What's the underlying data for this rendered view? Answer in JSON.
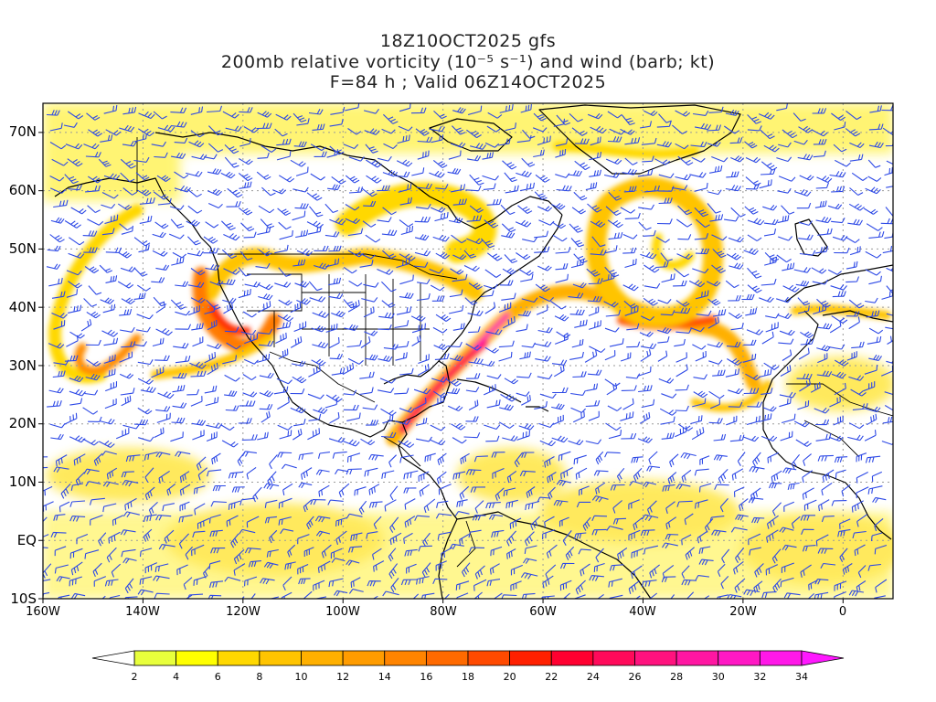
{
  "title": {
    "line1": "18Z10OCT2025 gfs",
    "line2": "200mb relative vorticity (10⁻⁵ s⁻¹) and wind (barb; kt)",
    "line3": "F=84 h ; Valid 06Z14OCT2025"
  },
  "map": {
    "projection": "latlon",
    "lon_range": [
      -160,
      10
    ],
    "lat_range": [
      -10,
      75
    ],
    "frame_color": "#000000",
    "grid_color": "#9a9a9a",
    "coast_color": "#000000",
    "barb_color": "#2d49e6",
    "lat_labels": [
      "70N",
      "60N",
      "50N",
      "40N",
      "30N",
      "20N",
      "10N",
      "EQ",
      "10S"
    ],
    "lat_values": [
      70,
      60,
      50,
      40,
      30,
      20,
      10,
      0,
      -10
    ],
    "lon_labels": [
      "160W",
      "140W",
      "120W",
      "100W",
      "80W",
      "60W",
      "40W",
      "20W",
      "0"
    ],
    "lon_values": [
      -160,
      -140,
      -120,
      -100,
      -80,
      -60,
      -40,
      -20,
      0
    ]
  },
  "colorbar": {
    "labels": [
      "2",
      "4",
      "6",
      "8",
      "10",
      "12",
      "14",
      "16",
      "18",
      "20",
      "22",
      "24",
      "26",
      "28",
      "30",
      "32",
      "34"
    ],
    "colors": [
      "#e8ff3c",
      "#ffff00",
      "#ffd800",
      "#ffc400",
      "#ffb000",
      "#ff9c00",
      "#ff8400",
      "#ff6a00",
      "#ff4a00",
      "#ff2000",
      "#ff0030",
      "#ff0a5a",
      "#ff127e",
      "#ff16a2",
      "#ff18c4",
      "#ff18e8"
    ],
    "under_color": "#ffffff",
    "over_color": "#ff18ff"
  }
}
